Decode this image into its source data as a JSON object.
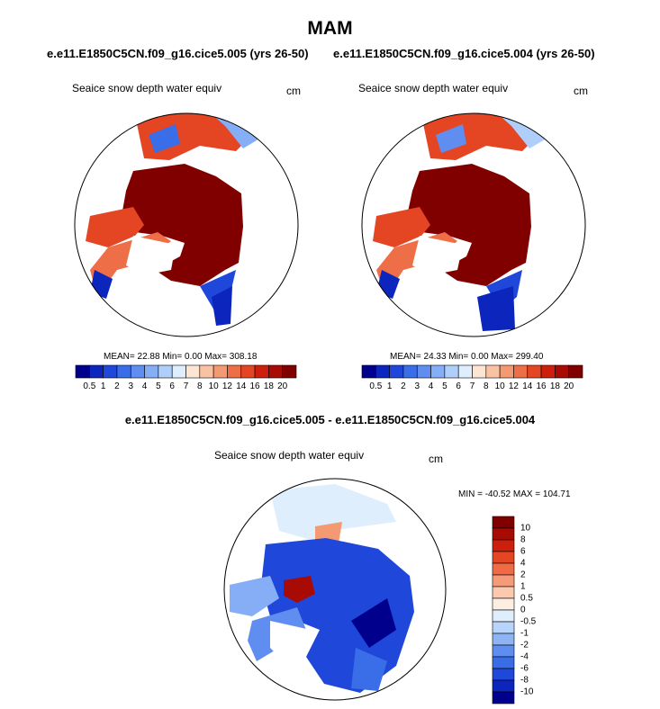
{
  "title": "MAM",
  "subtitle_left": "e.e11.E1850C5CN.f09_g16.cice5.005 (yrs 26-50)",
  "subtitle_right": "e.e11.E1850C5CN.f09_g16.cice5.004 (yrs 26-50)",
  "diff_title": "e.e11.E1850C5CN.f09_g16.cice5.005 - e.e11.E1850C5CN.f09_g16.cice5.004",
  "panels": [
    {
      "variable": "Seaice snow depth water equiv",
      "units": "cm",
      "stats": "MEAN=  22.88  Min=   0.00  Max= 308.18"
    },
    {
      "variable": "Seaice snow depth water equiv",
      "units": "cm",
      "stats": "MEAN=  24.33  Min=   0.00  Max= 299.40"
    },
    {
      "variable": "Seaice snow depth water equiv",
      "units": "cm",
      "stats": "MIN = -40.52 MAX = 104.71"
    }
  ],
  "colorbar_abs": {
    "ticks": [
      "0.5",
      "1",
      "2",
      "3",
      "4",
      "5",
      "6",
      "7",
      "8",
      "10",
      "12",
      "14",
      "16",
      "18",
      "20"
    ],
    "colors": [
      "#00008c",
      "#0b25bd",
      "#1f48db",
      "#3a6de8",
      "#5f8ef0",
      "#86aef6",
      "#b0cefa",
      "#dfeefc",
      "#fde5d4",
      "#f9c2a2",
      "#f49a72",
      "#ee6e47",
      "#e44523",
      "#cc200d",
      "#a80a04",
      "#800000"
    ]
  },
  "colorbar_diff": {
    "ticks": [
      "10",
      "8",
      "6",
      "4",
      "2",
      "1",
      "0.5",
      "0",
      "-0.5",
      "-1",
      "-2",
      "-4",
      "-6",
      "-8",
      "-10"
    ],
    "colors": [
      "#800000",
      "#a80a04",
      "#cc200d",
      "#e44523",
      "#f06a45",
      "#f59b7a",
      "#fcc9ae",
      "#fdeee4",
      "#dfeefc",
      "#b8d4fa",
      "#8fb4f4",
      "#5f8ef0",
      "#3a6de8",
      "#1f48db",
      "#0b25bd",
      "#00008c"
    ]
  }
}
